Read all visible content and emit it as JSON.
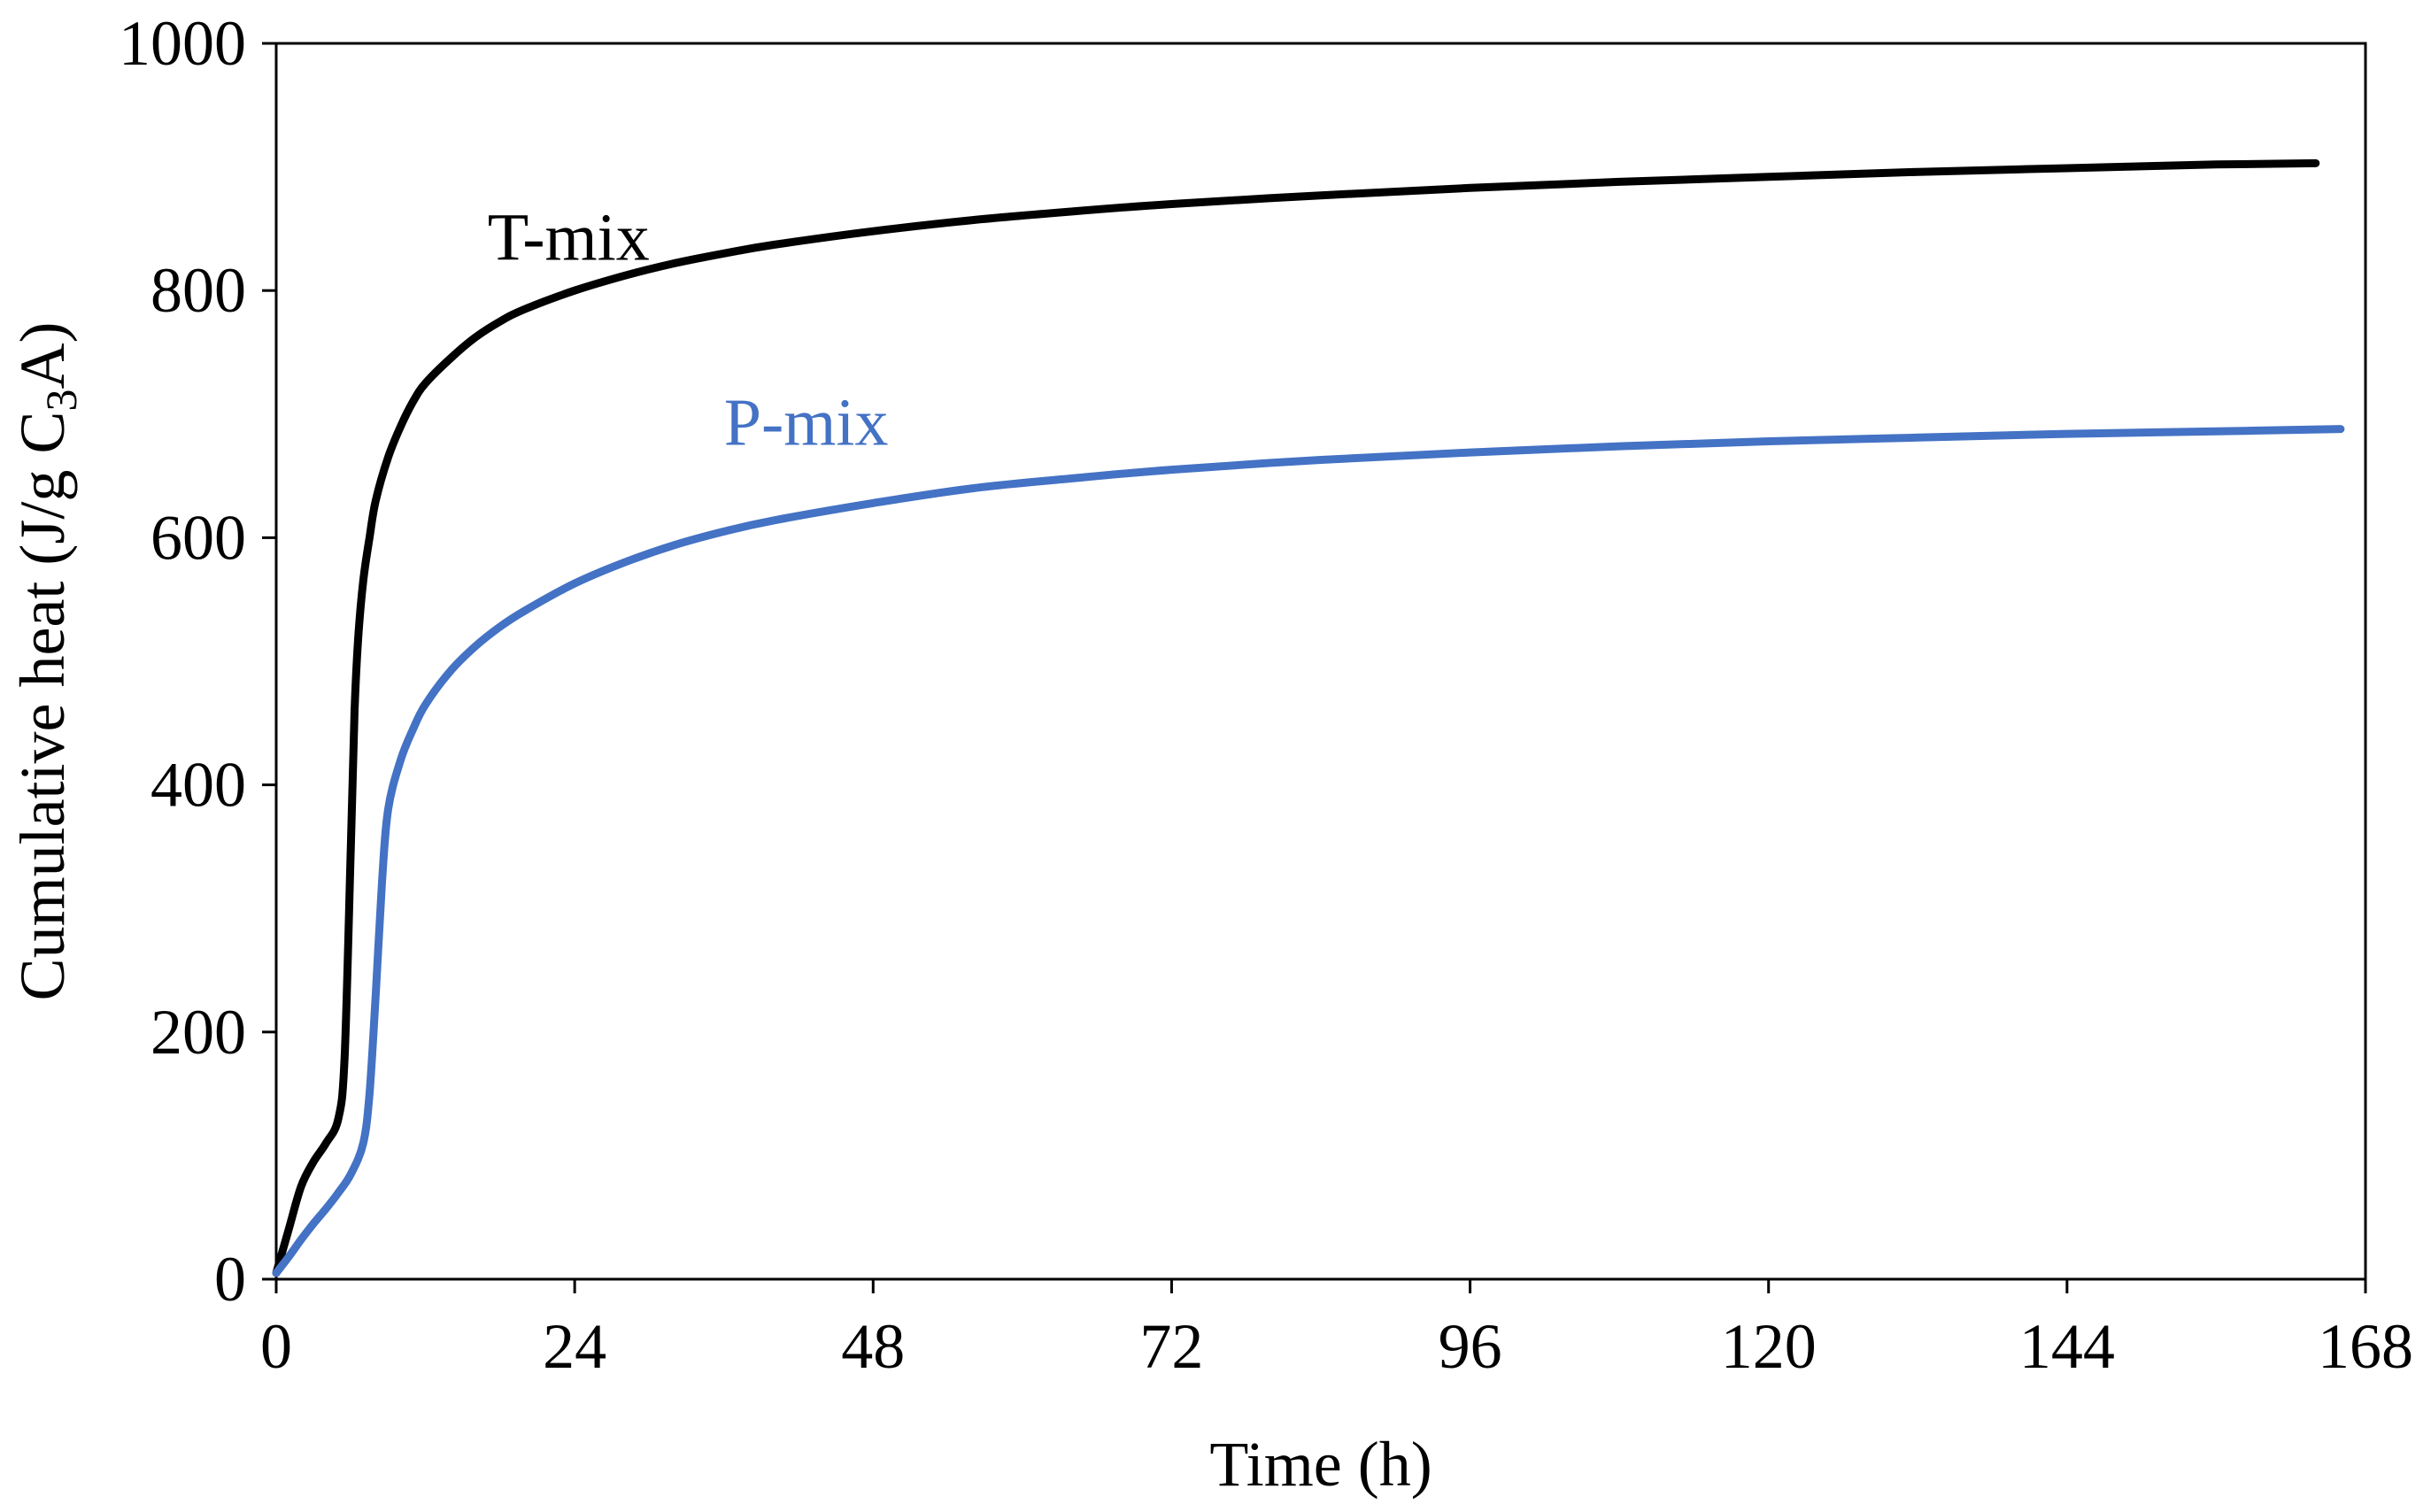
{
  "chart_data": {
    "type": "line",
    "title": "",
    "xlabel": "Time (h)",
    "ylabel_main": "Cumulative heat (J/g C",
    "ylabel_sub": "3",
    "ylabel_end": "A)",
    "xlim": [
      0,
      168
    ],
    "ylim": [
      0,
      1000
    ],
    "xticks": [
      0,
      24,
      48,
      72,
      96,
      120,
      144,
      168
    ],
    "yticks": [
      0,
      200,
      400,
      600,
      800,
      1000
    ],
    "grid": false,
    "legend": "inline labels",
    "series": [
      {
        "name": "T-mix",
        "label": "T-mix",
        "color": "#000000",
        "x": [
          0,
          1,
          2,
          3,
          4,
          5,
          5.5,
          6,
          6.3,
          6.6,
          7,
          7.5,
          8,
          9,
          10,
          11,
          12,
          14,
          16,
          18,
          20,
          24,
          28,
          32,
          36,
          40,
          48,
          56,
          64,
          72,
          84,
          96,
          108,
          120,
          132,
          144,
          156,
          164
        ],
        "y": [
          5,
          40,
          75,
          95,
          110,
          130,
          180,
          350,
          460,
          520,
          565,
          600,
          630,
          665,
          690,
          710,
          725,
          745,
          762,
          775,
          785,
          800,
          812,
          822,
          830,
          837,
          848,
          857,
          864,
          870,
          877,
          883,
          888,
          892,
          896,
          899,
          902,
          903
        ]
      },
      {
        "name": "P-mix",
        "label": "P-mix",
        "color": "#4472C4",
        "x": [
          0,
          1,
          2,
          3,
          4,
          5,
          6,
          7,
          7.5,
          8,
          8.5,
          9,
          10,
          11,
          12,
          14,
          16,
          18,
          20,
          24,
          28,
          32,
          36,
          40,
          48,
          56,
          64,
          72,
          84,
          96,
          108,
          120,
          132,
          144,
          156,
          166
        ],
        "y": [
          5,
          18,
          32,
          45,
          57,
          70,
          85,
          110,
          150,
          230,
          320,
          380,
          420,
          445,
          465,
          492,
          512,
          528,
          541,
          563,
          580,
          594,
          605,
          614,
          628,
          640,
          648,
          655,
          663,
          669,
          674,
          678,
          681,
          684,
          686,
          688
        ]
      }
    ],
    "annotations": [
      {
        "text": "T-mix",
        "x": 17,
        "y": 825,
        "color": "#000000"
      },
      {
        "text": "P-mix",
        "x": 36,
        "y": 675,
        "color": "#4472C4"
      }
    ]
  }
}
